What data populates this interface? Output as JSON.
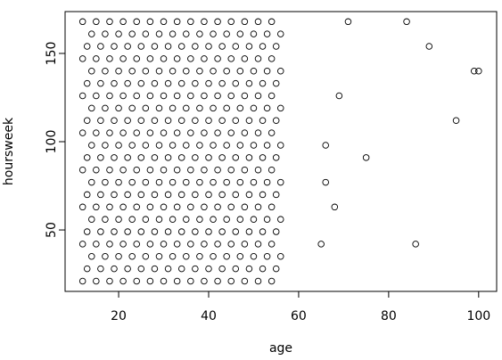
{
  "chart_data": {
    "type": "scatter",
    "x_label": "age",
    "y_label": "hoursweek",
    "xlim": [
      8.1,
      104
    ],
    "ylim": [
      15.2,
      173.7
    ],
    "xticks": [
      20,
      40,
      60,
      80,
      100
    ],
    "yticks": [
      50,
      100,
      150
    ],
    "color": "#000000",
    "x": [
      12,
      15,
      18,
      21,
      24,
      27,
      30,
      33,
      36,
      39,
      42,
      45,
      48,
      51,
      54,
      13,
      16,
      19,
      22,
      25,
      28,
      31,
      34,
      37,
      40,
      43,
      46,
      49,
      52,
      55,
      14,
      17,
      20,
      23,
      26,
      29,
      32,
      35,
      38,
      41,
      44,
      47,
      50,
      53,
      56,
      12,
      15,
      18,
      21,
      24,
      27,
      30,
      33,
      36,
      39,
      42,
      45,
      48,
      51,
      54,
      13,
      16,
      19,
      22,
      25,
      28,
      31,
      34,
      37,
      40,
      43,
      46,
      49,
      52,
      55,
      14,
      17,
      20,
      23,
      26,
      29,
      32,
      35,
      38,
      41,
      44,
      47,
      50,
      53,
      56,
      12,
      15,
      18,
      21,
      24,
      27,
      30,
      33,
      36,
      39,
      42,
      45,
      48,
      51,
      54,
      13,
      16,
      19,
      22,
      25,
      28,
      31,
      34,
      37,
      40,
      43,
      46,
      49,
      52,
      55,
      14,
      17,
      20,
      23,
      26,
      29,
      32,
      35,
      38,
      41,
      44,
      47,
      50,
      53,
      56,
      12,
      15,
      18,
      21,
      24,
      27,
      30,
      33,
      36,
      39,
      42,
      45,
      48,
      51,
      54,
      13,
      16,
      19,
      22,
      25,
      28,
      31,
      34,
      37,
      40,
      43,
      46,
      49,
      52,
      55,
      14,
      17,
      20,
      23,
      26,
      29,
      32,
      35,
      38,
      41,
      44,
      47,
      50,
      53,
      56,
      12,
      15,
      18,
      21,
      24,
      27,
      30,
      33,
      36,
      39,
      42,
      45,
      48,
      51,
      54,
      13,
      16,
      19,
      22,
      25,
      28,
      31,
      34,
      37,
      40,
      43,
      46,
      49,
      52,
      55,
      14,
      17,
      20,
      23,
      26,
      29,
      32,
      35,
      38,
      41,
      44,
      47,
      50,
      53,
      56,
      12,
      15,
      18,
      21,
      24,
      27,
      30,
      33,
      36,
      39,
      42,
      45,
      48,
      51,
      54,
      13,
      16,
      19,
      22,
      25,
      28,
      31,
      34,
      37,
      40,
      43,
      46,
      49,
      52,
      55,
      14,
      17,
      20,
      23,
      26,
      29,
      32,
      35,
      38,
      41,
      44,
      47,
      50,
      53,
      56,
      12,
      15,
      18,
      21,
      24,
      27,
      30,
      33,
      36,
      39,
      42,
      45,
      48,
      51,
      54,
      13,
      16,
      19,
      22,
      25,
      28,
      31,
      34,
      37,
      40,
      43,
      46,
      49,
      52,
      55,
      14,
      17,
      20,
      23,
      26,
      29,
      32,
      35,
      38,
      41,
      44,
      47,
      50,
      53,
      56,
      12,
      15,
      18,
      21,
      24,
      27,
      30,
      33,
      36,
      39,
      42,
      45,
      48,
      51,
      54,
      71,
      84,
      89,
      99,
      100,
      69,
      95,
      66,
      75,
      66,
      68,
      65,
      86
    ],
    "y": [
      21,
      21,
      21,
      21,
      21,
      21,
      21,
      21,
      21,
      21,
      21,
      21,
      21,
      21,
      21,
      28,
      28,
      28,
      28,
      28,
      28,
      28,
      28,
      28,
      28,
      28,
      28,
      28,
      28,
      28,
      35,
      35,
      35,
      35,
      35,
      35,
      35,
      35,
      35,
      35,
      35,
      35,
      35,
      35,
      35,
      42,
      42,
      42,
      42,
      42,
      42,
      42,
      42,
      42,
      42,
      42,
      42,
      42,
      42,
      42,
      49,
      49,
      49,
      49,
      49,
      49,
      49,
      49,
      49,
      49,
      49,
      49,
      49,
      49,
      49,
      56,
      56,
      56,
      56,
      56,
      56,
      56,
      56,
      56,
      56,
      56,
      56,
      56,
      56,
      56,
      63,
      63,
      63,
      63,
      63,
      63,
      63,
      63,
      63,
      63,
      63,
      63,
      63,
      63,
      63,
      70,
      70,
      70,
      70,
      70,
      70,
      70,
      70,
      70,
      70,
      70,
      70,
      70,
      70,
      70,
      77,
      77,
      77,
      77,
      77,
      77,
      77,
      77,
      77,
      77,
      77,
      77,
      77,
      77,
      77,
      84,
      84,
      84,
      84,
      84,
      84,
      84,
      84,
      84,
      84,
      84,
      84,
      84,
      84,
      84,
      91,
      91,
      91,
      91,
      91,
      91,
      91,
      91,
      91,
      91,
      91,
      91,
      91,
      91,
      91,
      98,
      98,
      98,
      98,
      98,
      98,
      98,
      98,
      98,
      98,
      98,
      98,
      98,
      98,
      98,
      105,
      105,
      105,
      105,
      105,
      105,
      105,
      105,
      105,
      105,
      105,
      105,
      105,
      105,
      105,
      112,
      112,
      112,
      112,
      112,
      112,
      112,
      112,
      112,
      112,
      112,
      112,
      112,
      112,
      112,
      119,
      119,
      119,
      119,
      119,
      119,
      119,
      119,
      119,
      119,
      119,
      119,
      119,
      119,
      119,
      126,
      126,
      126,
      126,
      126,
      126,
      126,
      126,
      126,
      126,
      126,
      126,
      126,
      126,
      126,
      133,
      133,
      133,
      133,
      133,
      133,
      133,
      133,
      133,
      133,
      133,
      133,
      133,
      133,
      133,
      140,
      140,
      140,
      140,
      140,
      140,
      140,
      140,
      140,
      140,
      140,
      140,
      140,
      140,
      140,
      147,
      147,
      147,
      147,
      147,
      147,
      147,
      147,
      147,
      147,
      147,
      147,
      147,
      147,
      147,
      154,
      154,
      154,
      154,
      154,
      154,
      154,
      154,
      154,
      154,
      154,
      154,
      154,
      154,
      154,
      161,
      161,
      161,
      161,
      161,
      161,
      161,
      161,
      161,
      161,
      161,
      161,
      161,
      161,
      161,
      168,
      168,
      168,
      168,
      168,
      168,
      168,
      168,
      168,
      168,
      168,
      168,
      168,
      168,
      168,
      168,
      168,
      154,
      140,
      140,
      126,
      112,
      98,
      91,
      77,
      63,
      42,
      42
    ]
  }
}
